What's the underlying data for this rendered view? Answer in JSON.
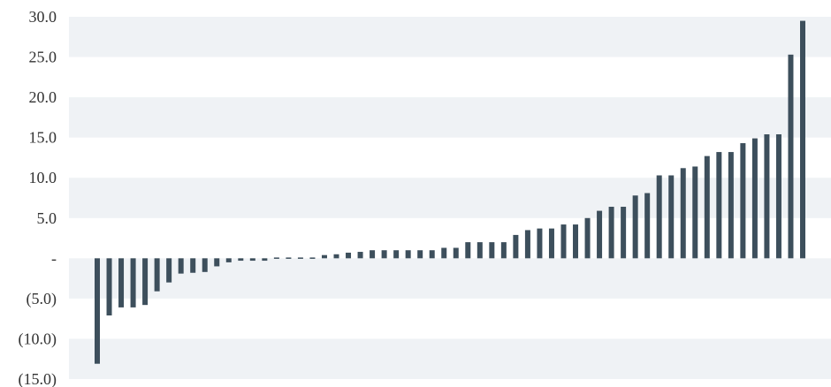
{
  "chart_data": {
    "type": "bar",
    "title": "",
    "xlabel": "",
    "ylabel": "",
    "ylim": [
      -15,
      30
    ],
    "y_ticks": [
      {
        "value": 30,
        "label": "30.0"
      },
      {
        "value": 25,
        "label": "25.0"
      },
      {
        "value": 20,
        "label": "20.0"
      },
      {
        "value": 15,
        "label": "15.0"
      },
      {
        "value": 10,
        "label": "10.0"
      },
      {
        "value": 5,
        "label": "5.0"
      },
      {
        "value": 0,
        "label": "-"
      },
      {
        "value": -5,
        "label": "(5.0)"
      },
      {
        "value": -10,
        "label": "(10.0)"
      },
      {
        "value": -15,
        "label": "(15.0)"
      }
    ],
    "grid": "alternating horizontal bands",
    "colors": {
      "bar": "#3d4f5c",
      "band": "#eff2f5",
      "background": "#ffffff",
      "tick_text": "#333333"
    },
    "values": [
      -13.1,
      -7.1,
      -6.1,
      -6.1,
      -5.8,
      -4.1,
      -3.0,
      -1.9,
      -1.8,
      -1.7,
      -1.0,
      -0.5,
      -0.3,
      -0.3,
      -0.3,
      0.1,
      0.1,
      0.1,
      0.1,
      0.4,
      0.5,
      0.7,
      0.8,
      1.0,
      1.0,
      1.0,
      1.0,
      1.0,
      1.0,
      1.3,
      1.3,
      2.0,
      2.0,
      2.0,
      2.0,
      2.9,
      3.5,
      3.7,
      3.7,
      4.2,
      4.2,
      5.0,
      5.9,
      6.4,
      6.4,
      7.8,
      8.1,
      10.3,
      10.3,
      11.2,
      11.4,
      12.7,
      13.2,
      13.2,
      14.3,
      14.9,
      15.4,
      15.4,
      25.3,
      29.5
    ]
  }
}
